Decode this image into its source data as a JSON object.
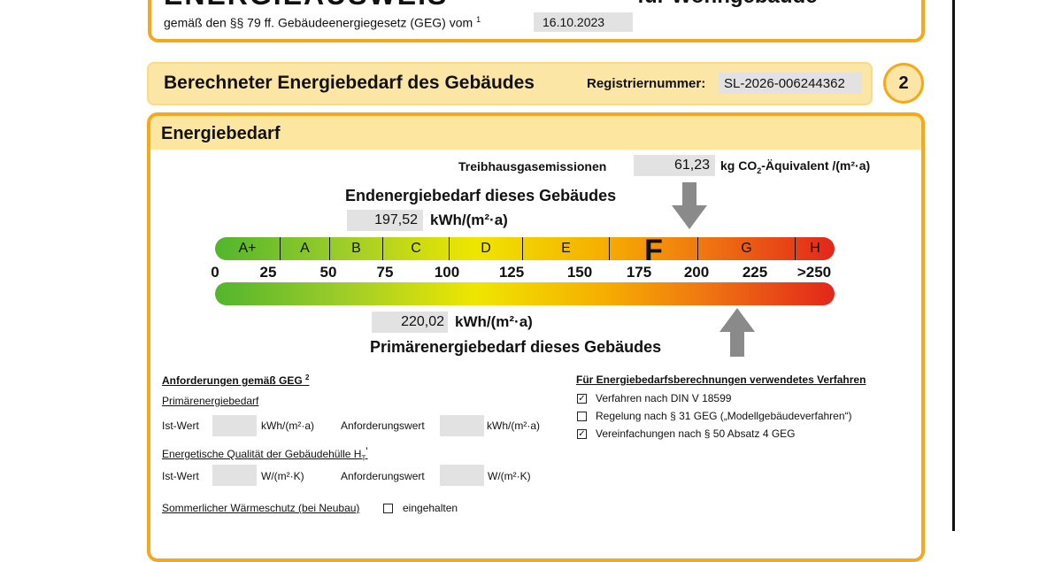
{
  "header": {
    "title": "ENERGIEAUSWEIS",
    "subtitle": "für Wohngebäude",
    "legal": "gemäß den §§ 79 ff. Gebäudeenergiegesetz (GEG) vom",
    "legal_note": "1",
    "date": "16.10.2023"
  },
  "section": {
    "title": "Berechneter Energiebedarf des Gebäudes",
    "reg_label": "Registriernummer:",
    "reg_number": "SL-2026-006244362",
    "page_number": "2"
  },
  "energiebedarf": {
    "title": "Energiebedarf",
    "emissions": {
      "label": "Treibhausgasemissionen",
      "value": "61,23",
      "unit_prefix": "kg CO",
      "unit_sub": "2",
      "unit_suffix": "-Äquivalent /(m²·a)"
    },
    "end": {
      "title": "Endenergiebedarf dieses Gebäudes",
      "value": "197,52",
      "unit": "kWh/(m²·a)"
    },
    "scale": {
      "classes": [
        {
          "label": "A+",
          "highlighted": false
        },
        {
          "label": "A",
          "highlighted": false
        },
        {
          "label": "B",
          "highlighted": false
        },
        {
          "label": "C",
          "highlighted": false
        },
        {
          "label": "D",
          "highlighted": false
        },
        {
          "label": "E",
          "highlighted": false
        },
        {
          "label": "F",
          "highlighted": true
        },
        {
          "label": "G",
          "highlighted": false
        },
        {
          "label": "H",
          "highlighted": false
        }
      ],
      "ticks": [
        "0",
        "25",
        "50",
        "75",
        "100",
        "125",
        "150",
        "175",
        "200",
        "225",
        ">250"
      ]
    },
    "primary": {
      "title": "Primärenergiebedarf dieses Gebäudes",
      "value": "220,02",
      "unit": "kWh/(m²·a)"
    }
  },
  "requirements": {
    "title": "Anforderungen gemäß GEG",
    "title_note": "2",
    "primary_heading": "Primärenergiebedarf",
    "ist_label": "Ist-Wert",
    "req_label": "Anforderungswert",
    "primary_unit": "kWh/(m²·a)",
    "envelope_heading": "Energetische Qualität der Gebäudehülle H",
    "envelope_sub": "T",
    "envelope_sup": "'",
    "envelope_unit": "W/(m²·K)",
    "summer": {
      "label": "Sommerlicher Wärmeschutz (bei Neubau)",
      "option": "eingehalten",
      "checked": false
    }
  },
  "method": {
    "title": "Für Energiebedarfsberechnungen verwendetes Verfahren",
    "options": [
      {
        "label": "Verfahren nach DIN V 18599",
        "checked": true
      },
      {
        "label": "Regelung nach § 31 GEG („Modellgebäudeverfahren“)",
        "checked": false
      },
      {
        "label": "Vereinfachungen nach § 50 Absatz 4 GEG",
        "checked": true
      }
    ]
  }
}
